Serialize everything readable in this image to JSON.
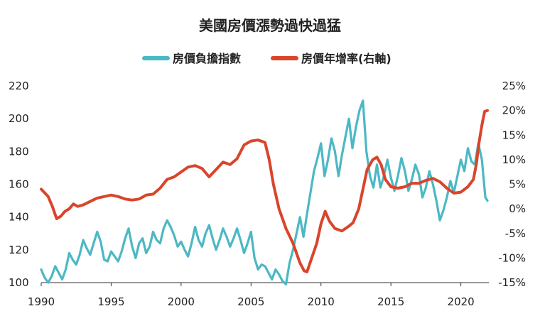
{
  "chart_data": {
    "type": "line",
    "title": "美國房價漲勢過快過猛",
    "legend": {
      "placement": "top-center",
      "items": [
        {
          "label": "房價負擔指數",
          "color": "#4cb8c4"
        },
        {
          "label": "房價年增率(右軸)",
          "color": "#d9452b"
        }
      ]
    },
    "x_ticks": [
      "1990",
      "1995",
      "2000",
      "2005",
      "2010",
      "2015",
      "2020"
    ],
    "xlim": [
      1990,
      2022
    ],
    "left_axis": {
      "ticks": [
        "100",
        "120",
        "140",
        "160",
        "180",
        "200",
        "220"
      ],
      "ylim": [
        100,
        220
      ]
    },
    "right_axis": {
      "ticks": [
        "-15%",
        "-10%",
        "-5%",
        "0%",
        "5%",
        "10%",
        "15%",
        "20%",
        "25%"
      ],
      "ylim": [
        -15,
        25
      ],
      "unit": "%"
    },
    "grid": false,
    "series": [
      {
        "name": "房價負擔指數",
        "axis": "left",
        "color": "#4cb8c4",
        "points": [
          [
            1990.0,
            108
          ],
          [
            1990.25,
            103
          ],
          [
            1990.5,
            100
          ],
          [
            1990.75,
            104
          ],
          [
            1991.0,
            110
          ],
          [
            1991.25,
            106
          ],
          [
            1991.5,
            102
          ],
          [
            1991.75,
            108
          ],
          [
            1992.0,
            118
          ],
          [
            1992.25,
            114
          ],
          [
            1992.5,
            111
          ],
          [
            1992.75,
            117
          ],
          [
            1993.0,
            126
          ],
          [
            1993.25,
            121
          ],
          [
            1993.5,
            117
          ],
          [
            1993.75,
            124
          ],
          [
            1994.0,
            131
          ],
          [
            1994.25,
            125
          ],
          [
            1994.5,
            114
          ],
          [
            1994.75,
            113
          ],
          [
            1995.0,
            119
          ],
          [
            1995.25,
            116
          ],
          [
            1995.5,
            113
          ],
          [
            1995.75,
            119
          ],
          [
            1996.0,
            127
          ],
          [
            1996.25,
            133
          ],
          [
            1996.5,
            122
          ],
          [
            1996.75,
            115
          ],
          [
            1997.0,
            124
          ],
          [
            1997.25,
            127
          ],
          [
            1997.5,
            118
          ],
          [
            1997.75,
            122
          ],
          [
            1998.0,
            131
          ],
          [
            1998.25,
            126
          ],
          [
            1998.5,
            124
          ],
          [
            1998.75,
            133
          ],
          [
            1999.0,
            138
          ],
          [
            1999.25,
            134
          ],
          [
            1999.5,
            129
          ],
          [
            1999.75,
            122
          ],
          [
            2000.0,
            125
          ],
          [
            2000.25,
            120
          ],
          [
            2000.5,
            116
          ],
          [
            2000.75,
            124
          ],
          [
            2001.0,
            134
          ],
          [
            2001.25,
            126
          ],
          [
            2001.5,
            122
          ],
          [
            2001.75,
            130
          ],
          [
            2002.0,
            135
          ],
          [
            2002.25,
            127
          ],
          [
            2002.5,
            120
          ],
          [
            2002.75,
            126
          ],
          [
            2003.0,
            133
          ],
          [
            2003.25,
            128
          ],
          [
            2003.5,
            122
          ],
          [
            2003.75,
            127
          ],
          [
            2004.0,
            133
          ],
          [
            2004.25,
            126
          ],
          [
            2004.5,
            118
          ],
          [
            2004.75,
            124
          ],
          [
            2005.0,
            131
          ],
          [
            2005.25,
            115
          ],
          [
            2005.5,
            108
          ],
          [
            2005.75,
            111
          ],
          [
            2006.0,
            110
          ],
          [
            2006.25,
            106
          ],
          [
            2006.5,
            102
          ],
          [
            2006.75,
            108
          ],
          [
            2007.0,
            105
          ],
          [
            2007.25,
            101
          ],
          [
            2007.5,
            99
          ],
          [
            2007.75,
            112
          ],
          [
            2008.0,
            120
          ],
          [
            2008.25,
            130
          ],
          [
            2008.5,
            140
          ],
          [
            2008.75,
            128
          ],
          [
            2009.0,
            142
          ],
          [
            2009.25,
            155
          ],
          [
            2009.5,
            168
          ],
          [
            2009.75,
            176
          ],
          [
            2010.0,
            185
          ],
          [
            2010.25,
            165
          ],
          [
            2010.5,
            175
          ],
          [
            2010.75,
            188
          ],
          [
            2011.0,
            180
          ],
          [
            2011.25,
            165
          ],
          [
            2011.5,
            178
          ],
          [
            2011.75,
            189
          ],
          [
            2012.0,
            200
          ],
          [
            2012.25,
            182
          ],
          [
            2012.5,
            195
          ],
          [
            2012.75,
            205
          ],
          [
            2013.0,
            211
          ],
          [
            2013.25,
            180
          ],
          [
            2013.5,
            165
          ],
          [
            2013.75,
            158
          ],
          [
            2014.0,
            172
          ],
          [
            2014.25,
            158
          ],
          [
            2014.5,
            165
          ],
          [
            2014.75,
            175
          ],
          [
            2015.0,
            164
          ],
          [
            2015.25,
            156
          ],
          [
            2015.5,
            165
          ],
          [
            2015.75,
            176
          ],
          [
            2016.0,
            168
          ],
          [
            2016.25,
            156
          ],
          [
            2016.5,
            163
          ],
          [
            2016.75,
            172
          ],
          [
            2017.0,
            166
          ],
          [
            2017.25,
            152
          ],
          [
            2017.5,
            158
          ],
          [
            2017.75,
            168
          ],
          [
            2018.0,
            160
          ],
          [
            2018.25,
            150
          ],
          [
            2018.5,
            138
          ],
          [
            2018.75,
            144
          ],
          [
            2019.0,
            152
          ],
          [
            2019.25,
            162
          ],
          [
            2019.5,
            155
          ],
          [
            2019.75,
            165
          ],
          [
            2020.0,
            175
          ],
          [
            2020.25,
            168
          ],
          [
            2020.5,
            182
          ],
          [
            2020.75,
            174
          ],
          [
            2021.0,
            172
          ],
          [
            2021.25,
            185
          ],
          [
            2021.5,
            175
          ],
          [
            2021.75,
            152
          ],
          [
            2021.9,
            150
          ]
        ]
      },
      {
        "name": "房價年增率(右軸)",
        "axis": "right",
        "color": "#d9452b",
        "points": [
          [
            1990.0,
            4
          ],
          [
            1990.5,
            2.5
          ],
          [
            1990.8,
            0.5
          ],
          [
            1991.1,
            -2
          ],
          [
            1991.4,
            -1.5
          ],
          [
            1991.7,
            -0.5
          ],
          [
            1992.0,
            0
          ],
          [
            1992.3,
            1
          ],
          [
            1992.6,
            0.5
          ],
          [
            1993.0,
            0.8
          ],
          [
            1993.5,
            1.5
          ],
          [
            1994.0,
            2.2
          ],
          [
            1994.5,
            2.5
          ],
          [
            1995.0,
            2.8
          ],
          [
            1995.5,
            2.5
          ],
          [
            1996.0,
            2
          ],
          [
            1996.5,
            1.8
          ],
          [
            1997.0,
            2
          ],
          [
            1997.5,
            2.8
          ],
          [
            1998.0,
            3
          ],
          [
            1998.5,
            4.2
          ],
          [
            1999.0,
            6
          ],
          [
            1999.5,
            6.5
          ],
          [
            2000.0,
            7.5
          ],
          [
            2000.5,
            8.5
          ],
          [
            2001.0,
            8.8
          ],
          [
            2001.5,
            8.2
          ],
          [
            2002.0,
            6.5
          ],
          [
            2002.5,
            8
          ],
          [
            2003.0,
            9.5
          ],
          [
            2003.5,
            9
          ],
          [
            2004.0,
            10.2
          ],
          [
            2004.5,
            13
          ],
          [
            2005.0,
            13.8
          ],
          [
            2005.5,
            14
          ],
          [
            2006.0,
            13.5
          ],
          [
            2006.3,
            10
          ],
          [
            2006.6,
            5
          ],
          [
            2007.0,
            0
          ],
          [
            2007.5,
            -4
          ],
          [
            2008.0,
            -7
          ],
          [
            2008.5,
            -11
          ],
          [
            2008.8,
            -12.6
          ],
          [
            2009.0,
            -12.8
          ],
          [
            2009.4,
            -9.5
          ],
          [
            2009.7,
            -7
          ],
          [
            2010.0,
            -3
          ],
          [
            2010.3,
            -0.5
          ],
          [
            2010.6,
            -2.5
          ],
          [
            2011.0,
            -4
          ],
          [
            2011.5,
            -4.5
          ],
          [
            2012.0,
            -3.5
          ],
          [
            2012.3,
            -2.8
          ],
          [
            2012.7,
            0
          ],
          [
            2013.0,
            4
          ],
          [
            2013.3,
            8
          ],
          [
            2013.7,
            10
          ],
          [
            2014.0,
            10.5
          ],
          [
            2014.3,
            9
          ],
          [
            2014.6,
            6
          ],
          [
            2015.0,
            4.5
          ],
          [
            2015.5,
            4.2
          ],
          [
            2016.0,
            4.5
          ],
          [
            2016.5,
            5.2
          ],
          [
            2017.0,
            5.2
          ],
          [
            2017.5,
            5.8
          ],
          [
            2018.0,
            6.2
          ],
          [
            2018.5,
            5.5
          ],
          [
            2019.0,
            4.2
          ],
          [
            2019.5,
            3.2
          ],
          [
            2020.0,
            3.4
          ],
          [
            2020.5,
            4.5
          ],
          [
            2020.9,
            6
          ],
          [
            2021.1,
            9
          ],
          [
            2021.3,
            13.5
          ],
          [
            2021.5,
            17
          ],
          [
            2021.7,
            19.8
          ],
          [
            2021.9,
            20
          ]
        ]
      }
    ]
  }
}
